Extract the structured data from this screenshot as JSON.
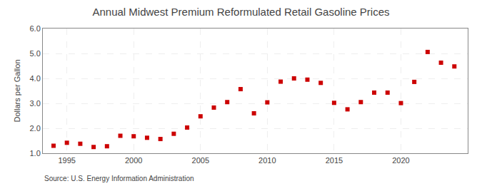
{
  "chart_data": {
    "type": "scatter",
    "title": "Annual Midwest Premium Reformulated Retail Gasoline Prices",
    "ylabel": "Dollars per Gallon",
    "annotations": [
      "Source: U.S. Energy Information Administration"
    ],
    "x": [
      1994,
      1995,
      1996,
      1997,
      1998,
      1999,
      2000,
      2001,
      2002,
      2003,
      2004,
      2005,
      2006,
      2007,
      2008,
      2009,
      2010,
      2011,
      2012,
      2013,
      2014,
      2015,
      2016,
      2017,
      2018,
      2019,
      2020,
      2021,
      2022,
      2023,
      2024
    ],
    "values": [
      1.3,
      1.42,
      1.38,
      1.25,
      1.28,
      1.7,
      1.68,
      1.62,
      1.57,
      1.78,
      2.03,
      2.48,
      2.83,
      3.05,
      3.57,
      2.6,
      3.04,
      3.87,
      4.0,
      3.95,
      3.82,
      3.02,
      2.76,
      3.05,
      3.43,
      3.43,
      3.01,
      3.86,
      5.06,
      4.63,
      4.48
    ],
    "color": "#cc0000",
    "marker": "square",
    "xlim": [
      1993.2,
      2025.0
    ],
    "xticks": [
      1995,
      2000,
      2005,
      2010,
      2015,
      2020
    ],
    "ylim": [
      1.0,
      6.0
    ],
    "yticks": [
      {
        "value": 1.0,
        "label": "1.0"
      },
      {
        "value": 2.0,
        "label": "2.0"
      },
      {
        "value": 3.0,
        "label": "3.0"
      },
      {
        "value": 4.0,
        "label": "4.0"
      },
      {
        "value": 5.0,
        "label": "5.0"
      },
      {
        "value": 6.0,
        "label": "6.0"
      }
    ],
    "grid": true
  }
}
